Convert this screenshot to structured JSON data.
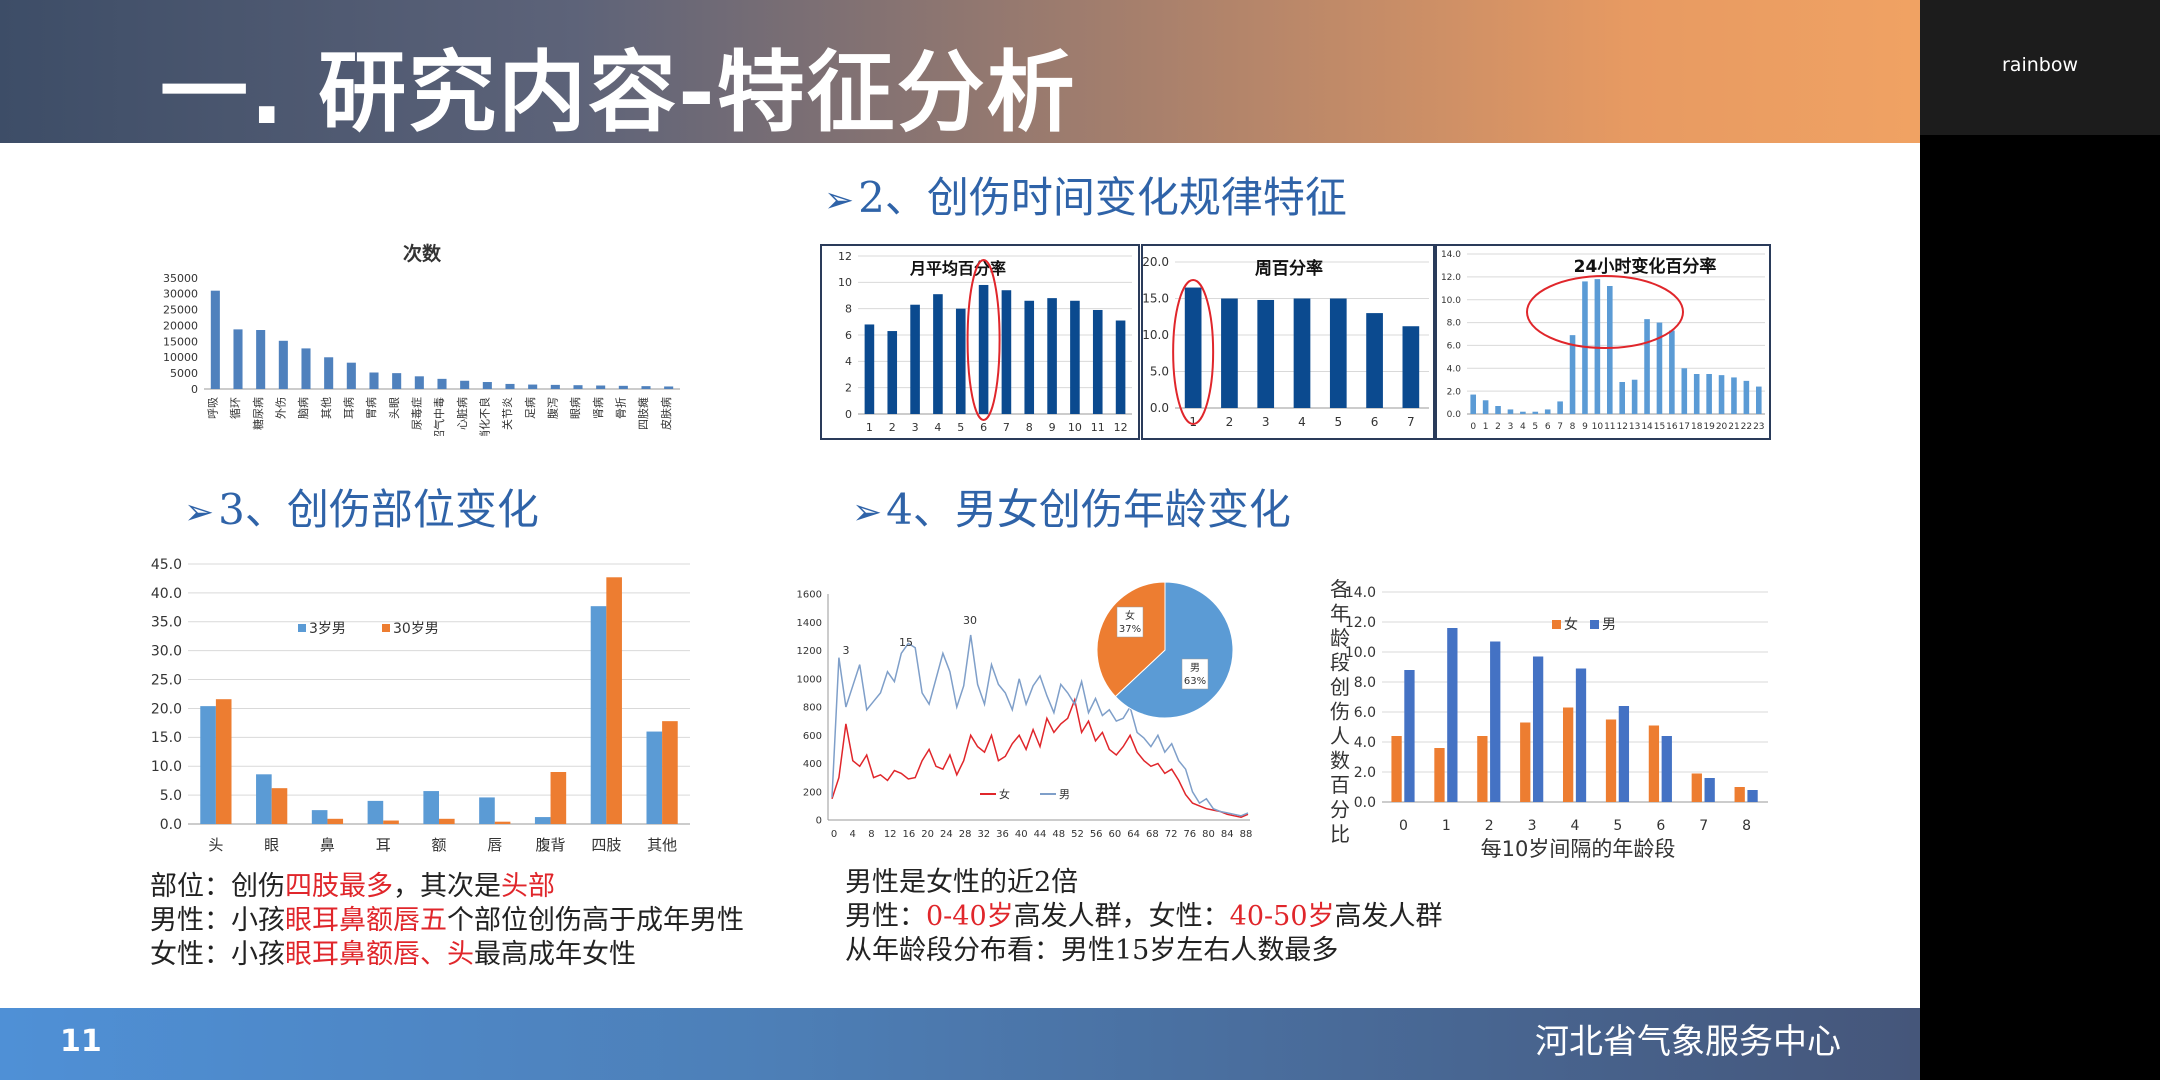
{
  "slide": {
    "title": "一. 研究内容-特征分析",
    "page_number": "11",
    "org": "河北省气象服务中心"
  },
  "presenter": {
    "name": "rainbow"
  },
  "sections": {
    "s2": "2、创伤时间变化规律特征",
    "s3": "3、创伤部位变化",
    "s4": "4、男女创伤年龄变化"
  },
  "notes": {
    "left": [
      {
        "parts": [
          {
            "t": "部位：创伤",
            "r": false
          },
          {
            "t": "四肢最多",
            "r": true
          },
          {
            "t": "，其次是",
            "r": false
          },
          {
            "t": "头部",
            "r": true
          }
        ]
      },
      {
        "parts": [
          {
            "t": "男性：小孩",
            "r": false
          },
          {
            "t": "眼耳鼻额唇五",
            "r": true
          },
          {
            "t": "个部位创伤高于成年男性",
            "r": false
          }
        ]
      },
      {
        "parts": [
          {
            "t": "女性：小孩",
            "r": false
          },
          {
            "t": "眼耳鼻额唇、头",
            "r": true
          },
          {
            "t": "最高成年女性",
            "r": false
          }
        ]
      }
    ],
    "right": [
      {
        "parts": [
          {
            "t": "男性是女性的近2倍",
            "r": false
          }
        ]
      },
      {
        "parts": [
          {
            "t": "男性：",
            "r": false
          },
          {
            "t": "0-40岁",
            "r": true
          },
          {
            "t": "高发人群，女性：",
            "r": false
          },
          {
            "t": "40-50岁",
            "r": true
          },
          {
            "t": "高发人群",
            "r": false
          }
        ]
      },
      {
        "parts": [
          {
            "t": "从年龄段分布看：男性15岁左右人数最多",
            "r": false
          }
        ]
      }
    ]
  },
  "colors": {
    "blue": "#4f81bd",
    "navy": "#0b4a8f",
    "orange": "#ed7d31",
    "red": "#e0262b",
    "lightblue": "#5b9bd5"
  },
  "chart_data": [
    {
      "id": "counts",
      "type": "bar",
      "title": "次数",
      "categories": [
        "呼吸",
        "循环",
        "糖尿病",
        "外伤",
        "脑病",
        "其他",
        "耳病",
        "胃病",
        "头眼",
        "尿毒症",
        "沼气中毒",
        "心脏病",
        "消化不良",
        "关节炎",
        "足病",
        "腹泻",
        "眼病",
        "肾病",
        "骨折",
        "四肢瘫",
        "皮肤病"
      ],
      "values": [
        31000,
        18800,
        18600,
        15200,
        12800,
        10000,
        8300,
        5200,
        5000,
        4000,
        3200,
        2600,
        2200,
        1600,
        1400,
        1300,
        1200,
        1100,
        1000,
        900,
        800
      ],
      "ylim": [
        0,
        35000
      ],
      "yticks": [
        0,
        5000,
        10000,
        15000,
        20000,
        25000,
        30000,
        35000
      ]
    },
    {
      "id": "monthly",
      "type": "bar",
      "title": "月平均百分率",
      "categories": [
        "1",
        "2",
        "3",
        "4",
        "5",
        "6",
        "7",
        "8",
        "9",
        "10",
        "11",
        "12"
      ],
      "values": [
        6.8,
        6.3,
        8.3,
        9.1,
        8.0,
        9.8,
        9.4,
        8.6,
        8.8,
        8.6,
        7.9,
        7.1
      ],
      "ylim": [
        0,
        12
      ],
      "yticks": [
        0,
        2,
        4,
        6,
        8,
        10,
        12
      ],
      "highlight": 5
    },
    {
      "id": "weekly",
      "type": "bar",
      "title": "周百分率",
      "categories": [
        "1",
        "2",
        "3",
        "4",
        "5",
        "6",
        "7"
      ],
      "values": [
        16.5,
        15.0,
        14.8,
        15.0,
        15.0,
        13.0,
        11.2
      ],
      "ylim": [
        0,
        20
      ],
      "yticks": [
        "0.0",
        "5.0",
        "10.0",
        "15.0",
        "20.0"
      ],
      "highlight": 0
    },
    {
      "id": "hourly",
      "type": "bar",
      "title": "24小时变化百分率",
      "categories": [
        "0",
        "1",
        "2",
        "3",
        "4",
        "5",
        "6",
        "7",
        "8",
        "9",
        "10",
        "11",
        "12",
        "13",
        "14",
        "15",
        "16",
        "17",
        "18",
        "19",
        "20",
        "21",
        "22",
        "23"
      ],
      "values": [
        1.7,
        1.2,
        0.7,
        0.4,
        0.2,
        0.2,
        0.4,
        1.1,
        6.9,
        11.6,
        11.8,
        11.2,
        2.8,
        3.0,
        8.3,
        8.0,
        7.3,
        4.0,
        3.5,
        3.5,
        3.4,
        3.2,
        2.9,
        2.4
      ],
      "ylim": [
        0,
        14
      ],
      "yticks": [
        "0.0",
        "2.0",
        "4.0",
        "6.0",
        "8.0",
        "10.0",
        "12.0",
        "14.0"
      ]
    },
    {
      "id": "body-parts",
      "type": "bar",
      "categories": [
        "头",
        "眼",
        "鼻",
        "耳",
        "额",
        "唇",
        "腹背",
        "四肢",
        "其他"
      ],
      "series": [
        {
          "name": "3岁男",
          "values": [
            20.4,
            8.6,
            2.4,
            4.0,
            5.7,
            4.6,
            1.2,
            37.7,
            16.0
          ]
        },
        {
          "name": "30岁男",
          "values": [
            21.6,
            6.2,
            0.9,
            0.6,
            0.9,
            0.4,
            9.0,
            42.7,
            17.8
          ]
        }
      ],
      "ylim": [
        0,
        45
      ],
      "yticks": [
        "0.0",
        "5.0",
        "10.0",
        "15.0",
        "20.0",
        "25.0",
        "30.0",
        "35.0",
        "40.0",
        "45.0"
      ]
    },
    {
      "id": "age-lines",
      "type": "line",
      "xticks": [
        "0",
        "4",
        "8",
        "12",
        "16",
        "20",
        "24",
        "28",
        "32",
        "36",
        "40",
        "44",
        "48",
        "52",
        "56",
        "60",
        "64",
        "68",
        "72",
        "76",
        "80",
        "84",
        "88"
      ],
      "ylim": [
        0,
        1600
      ],
      "yticks": [
        0,
        200,
        400,
        600,
        800,
        1000,
        1200,
        1400,
        1600
      ],
      "annotations": [
        "3",
        "15",
        "30"
      ],
      "series": [
        {
          "name": "女",
          "values": [
            150,
            300,
            680,
            420,
            380,
            460,
            300,
            320,
            280,
            350,
            330,
            290,
            300,
            420,
            500,
            380,
            360,
            460,
            320,
            420,
            600,
            520,
            480,
            600,
            420,
            450,
            540,
            600,
            500,
            640,
            520,
            720,
            620,
            680,
            720,
            850,
            620,
            700,
            560,
            620,
            500,
            460,
            520,
            600,
            480,
            420,
            380,
            400,
            330,
            360,
            280,
            180,
            120,
            100,
            80,
            70,
            60,
            40,
            30,
            20,
            40
          ]
        },
        {
          "name": "男",
          "values": [
            160,
            1150,
            800,
            950,
            1100,
            780,
            840,
            900,
            1050,
            980,
            1180,
            1250,
            1220,
            900,
            820,
            1000,
            1180,
            1050,
            800,
            950,
            1310,
            960,
            820,
            1100,
            960,
            900,
            780,
            1000,
            820,
            950,
            1020,
            880,
            760,
            960,
            900,
            820,
            980,
            760,
            860,
            740,
            780,
            700,
            720,
            800,
            620,
            580,
            520,
            600,
            480,
            540,
            420,
            360,
            200,
            120,
            150,
            80,
            60,
            50,
            40,
            30,
            50
          ]
        }
      ]
    },
    {
      "id": "gender-pie",
      "type": "pie",
      "slices": [
        {
          "label": "男",
          "value": 63,
          "text": "63%"
        },
        {
          "label": "女",
          "value": 37,
          "text": "37%"
        }
      ]
    },
    {
      "id": "age-groups",
      "type": "bar",
      "ylabel": "各年龄段创伤人数百分比",
      "xlabel": "每10岁间隔的年龄段",
      "categories": [
        "0",
        "1",
        "2",
        "3",
        "4",
        "5",
        "6",
        "7",
        "8"
      ],
      "series": [
        {
          "name": "女",
          "values": [
            4.4,
            3.6,
            4.4,
            5.3,
            6.3,
            5.5,
            5.1,
            1.9,
            1.0
          ]
        },
        {
          "name": "男",
          "values": [
            8.8,
            11.6,
            10.7,
            9.7,
            8.9,
            6.4,
            4.4,
            1.6,
            0.8
          ]
        }
      ],
      "ylim": [
        0,
        14
      ],
      "yticks": [
        "0.0",
        "2.0",
        "4.0",
        "6.0",
        "8.0",
        "10.0",
        "12.0",
        "14.0"
      ]
    }
  ]
}
